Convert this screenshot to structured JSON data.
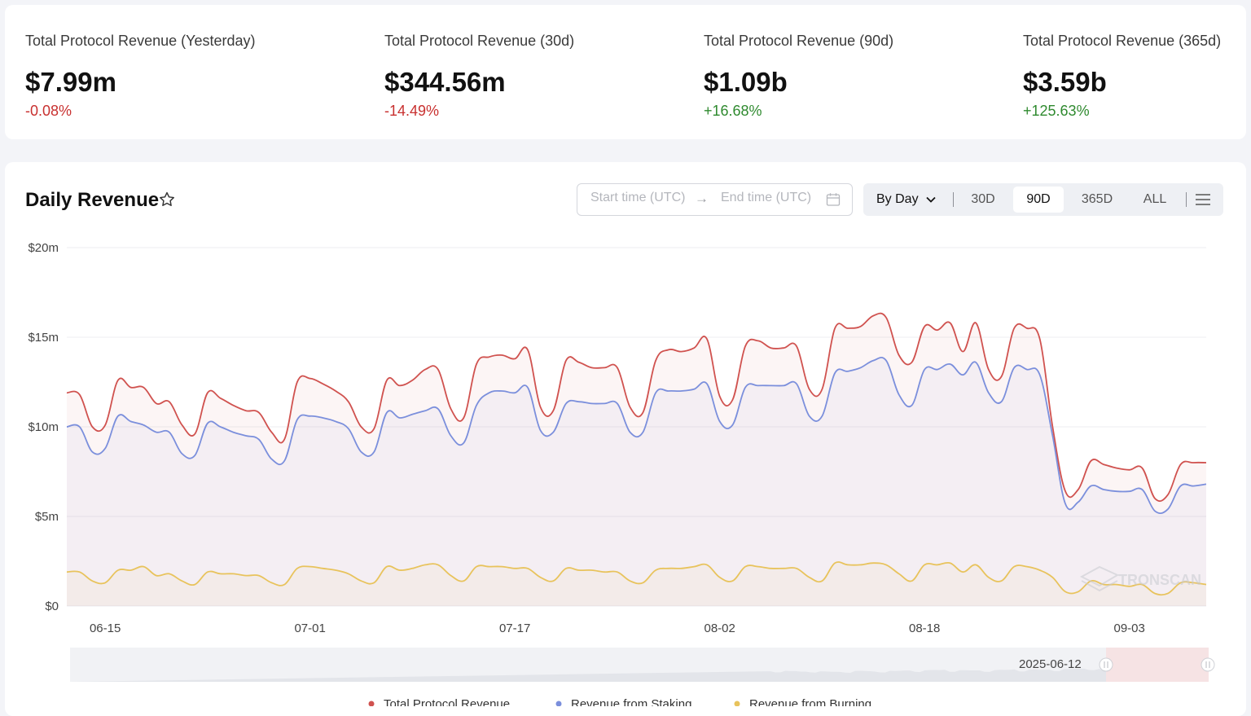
{
  "stats": [
    {
      "label": "Total Protocol Revenue (Yesterday)",
      "value": "$7.99m",
      "change": "-0.08%",
      "trend": "down"
    },
    {
      "label": "Total Protocol Revenue (30d)",
      "value": "$344.56m",
      "change": "-14.49%",
      "trend": "down"
    },
    {
      "label": "Total Protocol Revenue (90d)",
      "value": "$1.09b",
      "change": "+16.68%",
      "trend": "up"
    },
    {
      "label": "Total Protocol Revenue (365d)",
      "value": "$3.59b",
      "change": "+125.63%",
      "trend": "up"
    }
  ],
  "card": {
    "title": "Daily Revenue",
    "star_icon": "star-outline-icon",
    "range": {
      "start_placeholder": "Start time (UTC)",
      "arrow": "→",
      "end_placeholder": "End time (UTC)",
      "calendar_icon": "calendar-icon"
    },
    "toolbar": {
      "granularity": "By Day",
      "tabs": [
        "30D",
        "90D",
        "365D",
        "ALL"
      ],
      "active_tab": "90D",
      "menu_icon": "hamburger-menu-icon"
    },
    "watermark": "TRONSCAN",
    "slider_label": "2025-06-12"
  },
  "colors": {
    "total": "#d0524f",
    "staking": "#7b8fdc",
    "burning": "#e8c35c",
    "positive": "#2f8a2f",
    "negative": "#c8302f"
  },
  "chart_data": {
    "type": "area",
    "x_unit": "date",
    "x": [
      "06-12",
      "06-13",
      "06-14",
      "06-15",
      "06-16",
      "06-17",
      "06-18",
      "06-19",
      "06-20",
      "06-21",
      "06-22",
      "06-23",
      "06-24",
      "06-25",
      "06-26",
      "06-27",
      "06-28",
      "06-29",
      "06-30",
      "07-01",
      "07-02",
      "07-03",
      "07-04",
      "07-05",
      "07-06",
      "07-07",
      "07-08",
      "07-09",
      "07-10",
      "07-11",
      "07-12",
      "07-13",
      "07-14",
      "07-15",
      "07-16",
      "07-17",
      "07-18",
      "07-19",
      "07-20",
      "07-21",
      "07-22",
      "07-23",
      "07-24",
      "07-25",
      "07-26",
      "07-27",
      "07-28",
      "07-29",
      "07-30",
      "07-31",
      "08-01",
      "08-02",
      "08-03",
      "08-04",
      "08-05",
      "08-06",
      "08-07",
      "08-08",
      "08-09",
      "08-10",
      "08-11",
      "08-12",
      "08-13",
      "08-14",
      "08-15",
      "08-16",
      "08-17",
      "08-18",
      "08-19",
      "08-20",
      "08-21",
      "08-22",
      "08-23",
      "08-24",
      "08-25",
      "08-26",
      "08-27",
      "08-28",
      "08-29",
      "08-30",
      "08-31",
      "09-01",
      "09-02",
      "09-03",
      "09-04",
      "09-05",
      "09-06",
      "09-07",
      "09-08",
      "09-09"
    ],
    "series": [
      {
        "name": "Total Protocol Revenue",
        "color": "#d0524f",
        "values": [
          11.9,
          11.8,
          10.0,
          10.1,
          12.6,
          12.2,
          12.2,
          11.3,
          11.4,
          10.1,
          9.6,
          11.9,
          11.6,
          11.2,
          10.9,
          10.8,
          9.7,
          9.3,
          12.5,
          12.7,
          12.4,
          12.0,
          11.4,
          10.0,
          9.9,
          12.6,
          12.3,
          12.6,
          13.2,
          13.2,
          11.0,
          10.5,
          13.5,
          13.9,
          14.0,
          13.8,
          14.3,
          11.1,
          10.9,
          13.7,
          13.6,
          13.3,
          13.3,
          13.3,
          11.1,
          10.8,
          13.7,
          14.3,
          14.2,
          14.4,
          14.9,
          11.7,
          11.5,
          14.5,
          14.8,
          14.4,
          14.4,
          14.5,
          12.1,
          12.1,
          15.5,
          15.5,
          15.6,
          16.2,
          16.1,
          14.0,
          13.6,
          15.6,
          15.4,
          15.8,
          14.2,
          15.8,
          13.2,
          12.8,
          15.5,
          15.5,
          14.9,
          10.0,
          6.4,
          6.5,
          8.1,
          7.9,
          7.7,
          7.6,
          7.7,
          6.0,
          6.2,
          7.9,
          8.0,
          8.0
        ]
      },
      {
        "name": "Revenue from Staking",
        "color": "#7b8fdc",
        "values": [
          10.0,
          10.0,
          8.6,
          8.8,
          10.6,
          10.3,
          10.1,
          9.7,
          9.7,
          8.5,
          8.4,
          10.2,
          10.0,
          9.7,
          9.5,
          9.3,
          8.2,
          8.1,
          10.4,
          10.6,
          10.5,
          10.3,
          9.9,
          8.6,
          8.6,
          10.8,
          10.5,
          10.7,
          10.9,
          11.0,
          9.5,
          9.1,
          11.2,
          11.9,
          12.0,
          11.9,
          12.2,
          9.8,
          9.7,
          11.3,
          11.4,
          11.3,
          11.3,
          11.3,
          9.7,
          9.7,
          11.9,
          12.0,
          12.0,
          12.1,
          12.4,
          10.3,
          10.1,
          12.2,
          12.3,
          12.3,
          12.3,
          12.4,
          10.6,
          10.6,
          13.0,
          13.1,
          13.3,
          13.7,
          13.7,
          11.8,
          11.2,
          13.2,
          13.2,
          13.5,
          12.9,
          13.6,
          11.9,
          11.4,
          13.3,
          13.2,
          12.9,
          9.5,
          5.7,
          5.8,
          6.7,
          6.5,
          6.4,
          6.4,
          6.5,
          5.3,
          5.4,
          6.7,
          6.7,
          6.8
        ]
      },
      {
        "name": "Revenue from Burning",
        "color": "#e8c35c",
        "values": [
          1.9,
          1.9,
          1.4,
          1.3,
          2.0,
          2.0,
          2.2,
          1.7,
          1.8,
          1.4,
          1.2,
          1.9,
          1.8,
          1.8,
          1.7,
          1.7,
          1.3,
          1.2,
          2.1,
          2.2,
          2.1,
          2.0,
          1.8,
          1.4,
          1.3,
          2.2,
          2.0,
          2.1,
          2.3,
          2.3,
          1.7,
          1.4,
          2.2,
          2.2,
          2.2,
          2.1,
          2.1,
          1.6,
          1.4,
          2.1,
          2.0,
          2.0,
          1.9,
          1.9,
          1.4,
          1.3,
          2.0,
          2.1,
          2.1,
          2.2,
          2.3,
          1.6,
          1.4,
          2.2,
          2.2,
          2.1,
          2.1,
          2.1,
          1.6,
          1.4,
          2.4,
          2.3,
          2.3,
          2.4,
          2.3,
          1.8,
          1.4,
          2.3,
          2.3,
          2.4,
          1.9,
          2.3,
          1.6,
          1.4,
          2.2,
          2.2,
          2.0,
          1.6,
          0.8,
          0.8,
          1.4,
          1.2,
          1.2,
          1.1,
          1.2,
          0.7,
          0.7,
          1.3,
          1.3,
          1.2
        ]
      }
    ],
    "x_ticks": [
      "06-15",
      "07-01",
      "07-17",
      "08-02",
      "08-18",
      "09-03"
    ],
    "y_ticks": [
      "$0",
      "$5m",
      "$10m",
      "$15m",
      "$20m"
    ],
    "ylim": [
      0,
      20
    ],
    "y_unit": "$m",
    "grid": true,
    "legend_position": "bottom"
  }
}
